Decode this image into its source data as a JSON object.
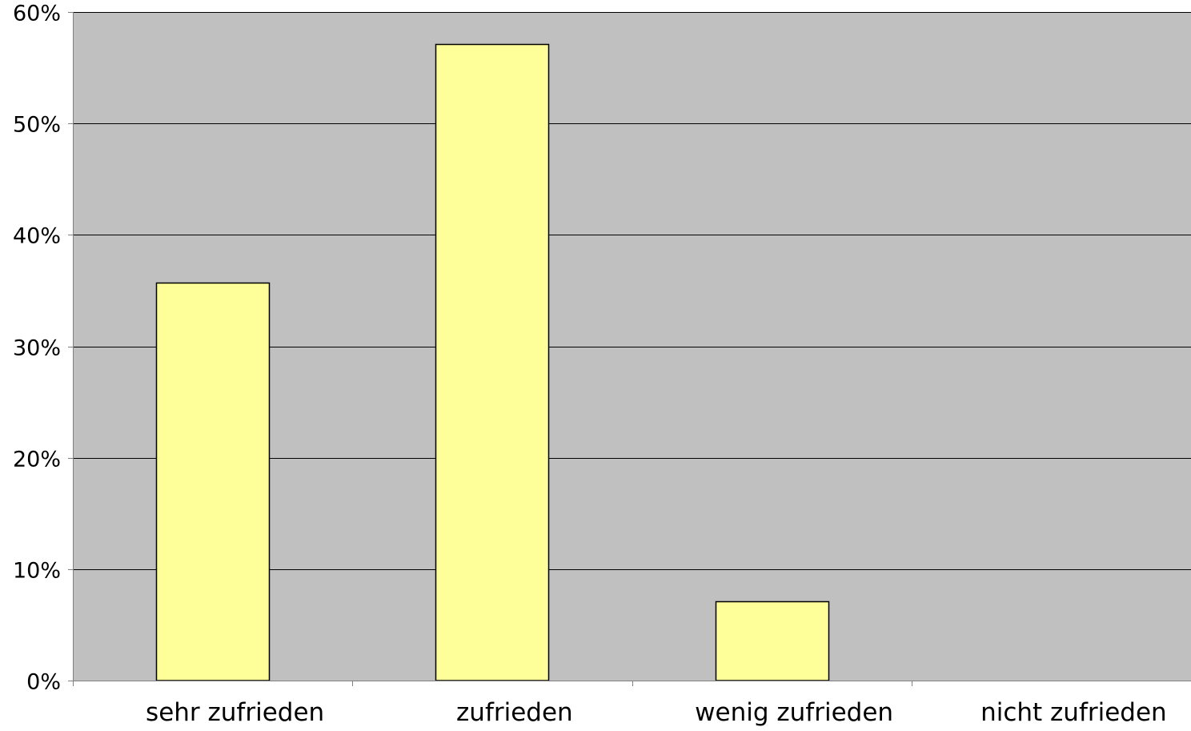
{
  "chart_data": {
    "type": "bar",
    "title": "",
    "xlabel": "",
    "ylabel": "",
    "categories": [
      "sehr zufrieden",
      "zufrieden",
      "wenig zufrieden",
      "nicht zufrieden"
    ],
    "values": [
      35.7,
      57.1,
      7.1,
      0
    ],
    "ylim": [
      0,
      60
    ],
    "yticks": [
      0,
      10,
      20,
      30,
      40,
      50,
      60
    ],
    "ytick_labels": [
      "0%",
      "10%",
      "20%",
      "30%",
      "40%",
      "50%",
      "60%"
    ],
    "grid": true,
    "legend": "none",
    "colors": {
      "plot_background": "#c0c0c0",
      "bar_fill": "#ffff99",
      "bar_stroke": "#000000",
      "gridline": "#000000",
      "axis": "#808080"
    }
  }
}
